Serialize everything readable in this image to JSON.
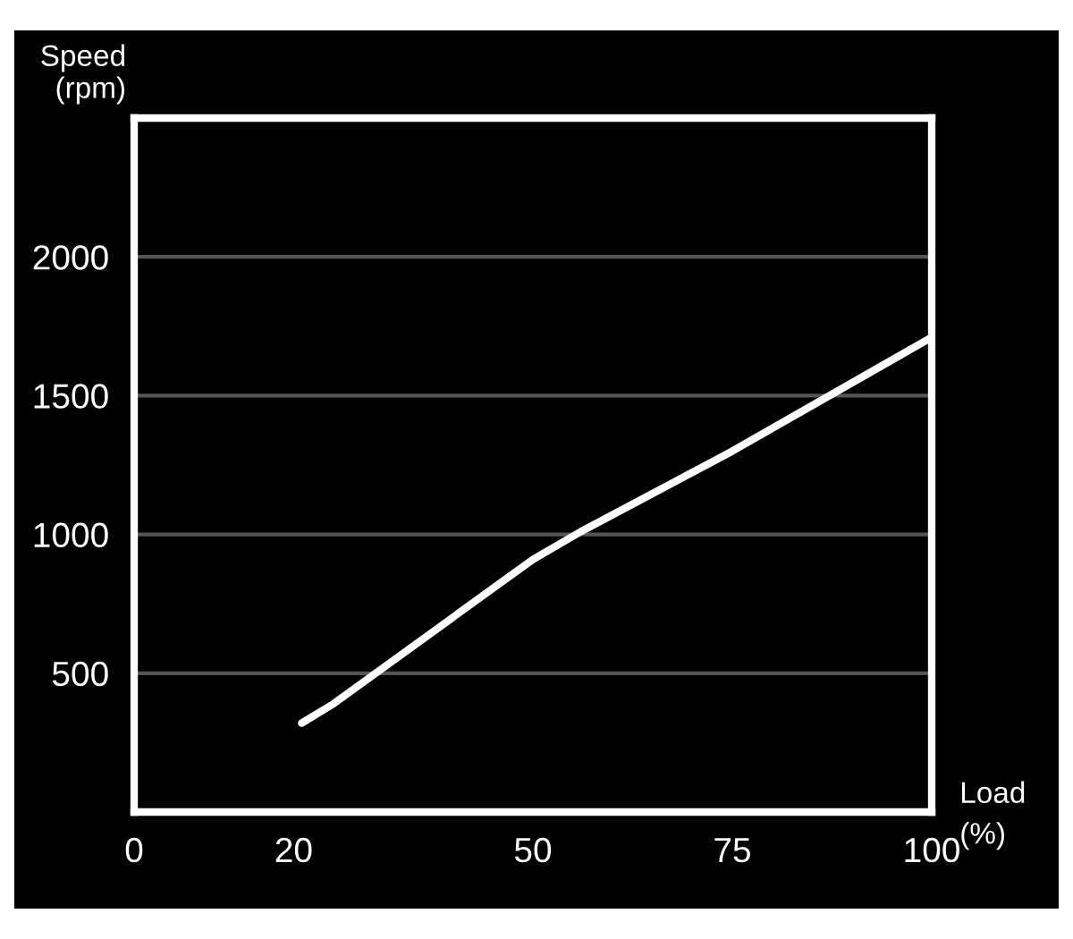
{
  "chart_data": {
    "type": "line",
    "xlabel": "Load\n(%)",
    "ylabel": "Speed\n(rpm)",
    "x": [
      21,
      25,
      50,
      56,
      75,
      100
    ],
    "series": [
      {
        "color": "#ffffff",
        "values": [
          320,
          390,
          910,
          1010,
          1300,
          1710
        ]
      }
    ],
    "xlim": [
      0,
      100
    ],
    "ylim": [
      0,
      2500
    ],
    "xticks": [
      0,
      20,
      50,
      75,
      100
    ],
    "yticks": [
      500,
      1000,
      1500,
      2000
    ],
    "grid": "y",
    "marker": "none",
    "line_style": "solid"
  }
}
